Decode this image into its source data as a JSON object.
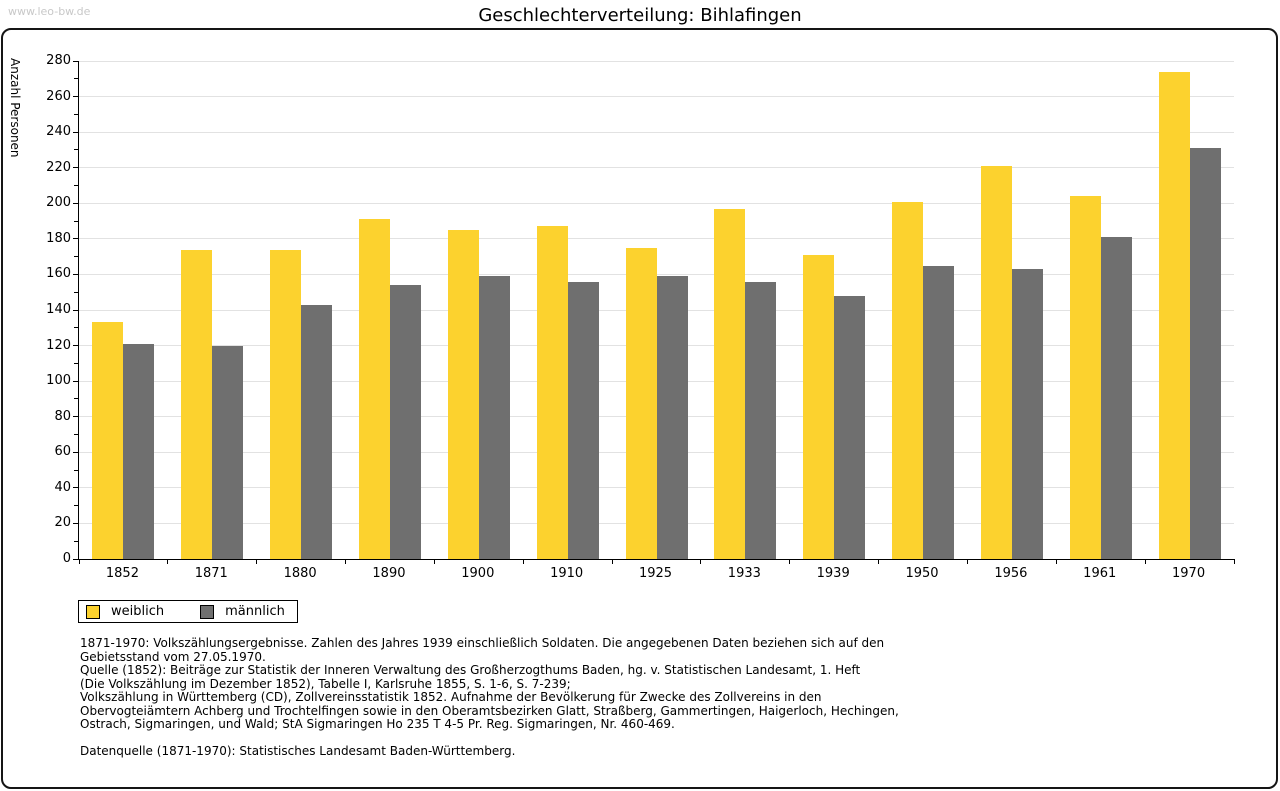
{
  "watermark": "www.leo-bw.de",
  "header": {
    "title": "Geschlechterverteilung: Bihlafingen"
  },
  "chart_data": {
    "type": "bar",
    "title": "Geschlechterverteilung: Bihlafingen",
    "xlabel": "",
    "ylabel": "Anzahl Personen",
    "categories": [
      "1852",
      "1871",
      "1880",
      "1890",
      "1900",
      "1910",
      "1925",
      "1933",
      "1939",
      "1950",
      "1956",
      "1961",
      "1970"
    ],
    "series": [
      {
        "name": "weiblich",
        "color": "#fcd22e",
        "values": [
          133,
          174,
          174,
          191,
          185,
          187,
          175,
          197,
          171,
          201,
          221,
          204,
          274
        ]
      },
      {
        "name": "männlich",
        "color": "#6f6f6f",
        "values": [
          121,
          120,
          143,
          154,
          159,
          156,
          159,
          156,
          148,
          165,
          163,
          181,
          231
        ]
      }
    ],
    "ylim": [
      0,
      280
    ],
    "ytick_step": 20,
    "yminor_step": 10,
    "grid": "horizontal",
    "gridline_color": "#e2e2e2",
    "legend_position": "bottom-left"
  },
  "legend": {
    "items": [
      {
        "label": "weiblich",
        "color": "#fcd22e"
      },
      {
        "label": "männlich",
        "color": "#6f6f6f"
      }
    ]
  },
  "footnotes": {
    "lines": [
      "1871-1970: Volkszählungsergebnisse. Zahlen des Jahres 1939 einschließlich Soldaten. Die angegebenen Daten beziehen sich auf den",
      "Gebietsstand vom 27.05.1970.",
      "Quelle (1852): Beiträge zur Statistik der Inneren Verwaltung des Großherzogthums Baden, hg. v. Statistischen Landesamt, 1. Heft",
      "(Die Volkszählung im Dezember 1852), Tabelle I, Karlsruhe 1855, S. 1-6, S. 7-239;",
      "Volkszählung in Württemberg (CD), Zollvereinsstatistik 1852. Aufnahme der Bevölkerung für Zwecke des Zollvereins in den",
      "Obervogteiämtern Achberg und Trochtelfingen sowie in den Oberamtsbezirken Glatt, Straßberg, Gammertingen, Haigerloch, Hechingen,",
      "Ostrach, Sigmaringen, und Wald; StA Sigmaringen Ho 235 T 4-5 Pr. Reg. Sigmaringen, Nr. 460-469."
    ],
    "source": "Datenquelle (1871-1970): Statistisches Landesamt Baden-Württemberg."
  }
}
